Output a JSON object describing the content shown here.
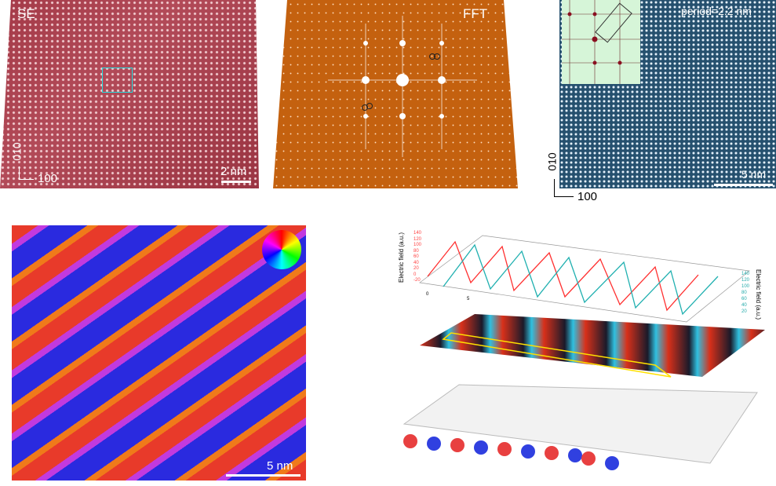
{
  "panel_se": {
    "label": "SE",
    "scale": "2 nm",
    "axis_y": "010",
    "axis_x": "100"
  },
  "panel_fft": {
    "label": "FFT"
  },
  "panel_stem": {
    "label": "period=2.2 nm",
    "scale": "5 nm",
    "axis_y": "010",
    "axis_x": "100"
  },
  "panel_polarization": {
    "scale": "5 nm"
  },
  "panel_3d": {
    "chart_data": {
      "type": "line",
      "ylabel_left": "Electric field (a.u.)",
      "ylabel_right": "Electric field (a.u.)",
      "yticks_left": [
        "-20",
        "0",
        "20",
        "40",
        "60",
        "80",
        "100",
        "120",
        "140"
      ],
      "yticks_right": [
        "20",
        "40",
        "60",
        "80",
        "100",
        "120",
        "140"
      ],
      "xticks": [
        "0",
        "5"
      ],
      "series_colors": [
        "#ff3030",
        "#20b0b0"
      ]
    }
  },
  "colors": {
    "se": "#a43a48",
    "fft": "#c4610f",
    "stem": "#25506e",
    "box": "#20e0e0"
  }
}
